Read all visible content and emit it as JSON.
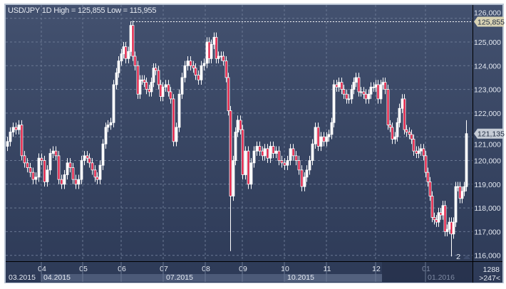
{
  "header": {
    "title": "USD/JPY 1D High = 125,855 Low = 115,955"
  },
  "chart_data": {
    "type": "candlestick",
    "title": "USD/JPY 1D High = 125,855 Low = 115,955",
    "symbol": "USD/JPY",
    "timeframe": "1D",
    "high": 125.855,
    "low": 115.955,
    "ylim": [
      115.8,
      126.6
    ],
    "yticks": [
      116,
      117,
      118,
      119,
      120,
      121,
      122,
      123,
      124,
      125,
      126
    ],
    "ytick_labels": [
      "116,000",
      "117,000",
      "118,000",
      "119,000",
      "120,000",
      "121,000",
      "122,000",
      "123,000",
      "124,000",
      "125,000",
      "126,000"
    ],
    "grid": true,
    "first_open": 120.6,
    "close": [
      120.8,
      121.2,
      121.4,
      121.3,
      121.5,
      120.2,
      119.9,
      119.7,
      119.5,
      119.2,
      119.3,
      120.1,
      120.0,
      119.1,
      119.6,
      120.3,
      120.4,
      120.2,
      119.2,
      119.0,
      119.4,
      119.9,
      119.7,
      119.2,
      119.0,
      119.2,
      120.0,
      120.2,
      120.1,
      119.9,
      119.6,
      119.3,
      119.2,
      119.8,
      120.7,
      121.4,
      121.5,
      121.6,
      123.2,
      123.7,
      124.2,
      124.5,
      124.8,
      124.3,
      124.6,
      125.7,
      124.4,
      124.0,
      122.8,
      123.4,
      123.4,
      123.3,
      123.0,
      122.9,
      123.3,
      123.9,
      123.8,
      123.2,
      122.7,
      123.1,
      123.2,
      122.9,
      122.6,
      120.8,
      121.4,
      122.8,
      123.5,
      124.0,
      124.2,
      124.0,
      123.9,
      123.6,
      123.4,
      124.0,
      124.1,
      125.0,
      124.3,
      124.9,
      125.2,
      124.3,
      124.4,
      124.4,
      124.2,
      123.5,
      122.1,
      118.5,
      120.0,
      121.2,
      121.7,
      121.3,
      119.4,
      120.4,
      119.0,
      119.9,
      120.4,
      120.6,
      120.4,
      120.2,
      120.5,
      120.1,
      120.6,
      120.3,
      120.4,
      120.0,
      119.9,
      119.8,
      120.0,
      120.5,
      120.2,
      120.0,
      119.6,
      118.9,
      119.3,
      119.6,
      120.0,
      120.7,
      121.4,
      120.6,
      121.0,
      120.8,
      121.0,
      121.1,
      121.6,
      123.2,
      123.1,
      123.3,
      123.0,
      122.8,
      122.6,
      122.6,
      123.0,
      123.3,
      123.5,
      122.9,
      122.9,
      122.8,
      122.6,
      122.8,
      123.1,
      123.1,
      123.2,
      122.6,
      123.2,
      123.3,
      123.0,
      121.5,
      121.4,
      120.9,
      121.0,
      121.6,
      122.2,
      122.6,
      121.3,
      121.2,
      121.1,
      120.9,
      120.4,
      120.3,
      120.4,
      120.5,
      120.2,
      119.5,
      119.1,
      118.5,
      117.6,
      117.5,
      117.4,
      117.8,
      117.7,
      118.1,
      117.0,
      117.1,
      117.4,
      116.9,
      117.4,
      118.9,
      118.9,
      118.4,
      118.7,
      118.9,
      121.135
    ],
    "extremes": [
      {
        "index": 45,
        "high": 125.855
      },
      {
        "index": 85,
        "low": 116.18
      },
      {
        "index": 173,
        "low": 115.955
      },
      {
        "index": 180,
        "high": 121.7
      }
    ],
    "high_line": {
      "value": 125.855,
      "label": "125,855"
    },
    "last_price": {
      "value": 121.135,
      "label": "121,135"
    },
    "month_ticks": [
      {
        "label": "04",
        "index": 12
      },
      {
        "label": "05",
        "index": 26.5
      },
      {
        "label": "06",
        "index": 41
      },
      {
        "label": "07",
        "index": 59.3
      },
      {
        "label": "08",
        "index": 74.5
      },
      {
        "label": "09",
        "index": 90
      },
      {
        "label": "10",
        "index": 105
      },
      {
        "label": "11",
        "index": 120
      },
      {
        "label": "12",
        "index": 140
      },
      {
        "label": "01",
        "index": 161
      }
    ],
    "period_labels": [
      "03.2015",
      "04.2015",
      "07.2015",
      "10.2015",
      "01.2016"
    ],
    "marker": "2",
    "colors": {
      "up": "#ffffff",
      "down": "#e0103a",
      "background_top": "#43516f",
      "background_bottom": "#2d3a57"
    }
  },
  "footer": {
    "bars_count": "1288",
    "visible": ">247<"
  }
}
